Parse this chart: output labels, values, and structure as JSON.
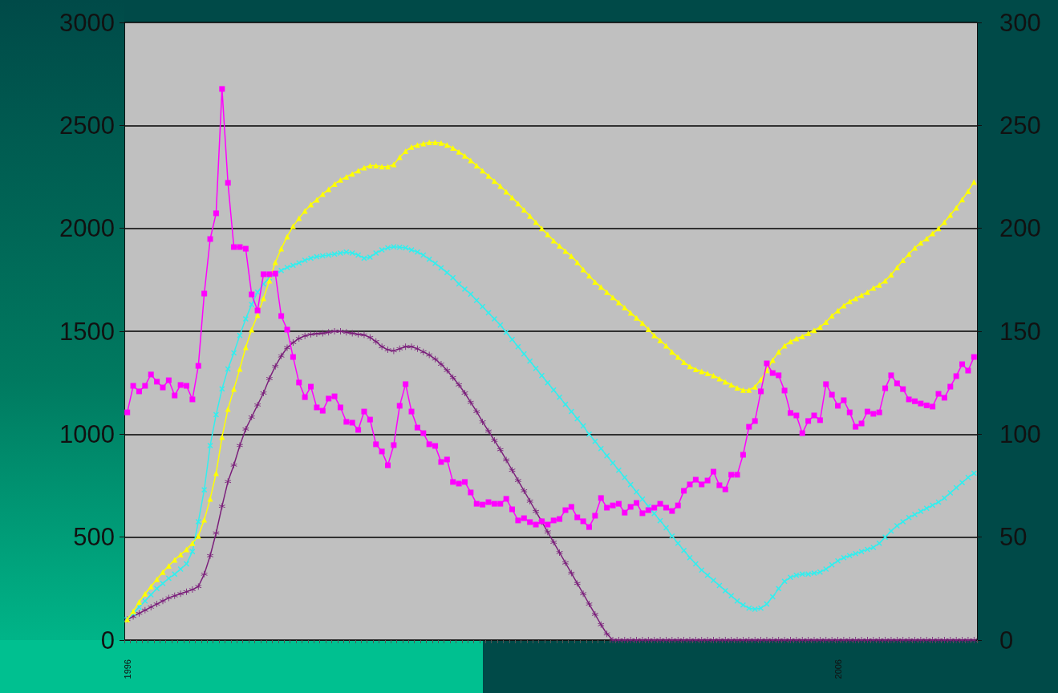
{
  "chart_data": {
    "type": "line",
    "categories": [
      "1996",
      null,
      null,
      null,
      null,
      null,
      null,
      null,
      null,
      null,
      null,
      null,
      null,
      null,
      null,
      null,
      null,
      null,
      null,
      null,
      null,
      null,
      null,
      null,
      null,
      null,
      null,
      null,
      null,
      null,
      null,
      null,
      null,
      null,
      null,
      null,
      null,
      null,
      null,
      null,
      null,
      null,
      null,
      null,
      null,
      null,
      null,
      null,
      null,
      null,
      null,
      null,
      null,
      null,
      null,
      null,
      null,
      null,
      null,
      null,
      null,
      null,
      null,
      null,
      null,
      null,
      null,
      null,
      null,
      null,
      null,
      null,
      null,
      null,
      null,
      null,
      null,
      null,
      null,
      null,
      null,
      null,
      null,
      null,
      null,
      null,
      null,
      null,
      null,
      null,
      null,
      null,
      null,
      null,
      null,
      null,
      null,
      null,
      null,
      null,
      null,
      null,
      null,
      null,
      null,
      null,
      null,
      null,
      null,
      null,
      null,
      null,
      null,
      null,
      null,
      null,
      null,
      null,
      null,
      null,
      "2006",
      null,
      null,
      null,
      null,
      null,
      null,
      null,
      null,
      null,
      null,
      null,
      null,
      null,
      null,
      null,
      null,
      null,
      null,
      null,
      null,
      null,
      null,
      null
    ],
    "series": [
      {
        "color": "#ff00ff",
        "marker": "square",
        "values": [
          1106,
          1235,
          1208,
          1235,
          1290,
          1255,
          1227,
          1262,
          1188,
          1239,
          1235,
          1169,
          1332,
          1683,
          1948,
          2073,
          2677,
          2221,
          1909,
          1909,
          1901,
          1679,
          1601,
          1777,
          1777,
          1780,
          1574,
          1508,
          1375,
          1251,
          1180,
          1231,
          1130,
          1114,
          1173,
          1184,
          1130,
          1060,
          1056,
          1021,
          1110,
          1071,
          951,
          916,
          849,
          947,
          1138,
          1243,
          1110,
          1032,
          1005,
          951,
          943,
          865,
          877,
          768,
          760,
          768,
          717,
          662,
          658,
          670,
          662,
          662,
          686,
          635,
          581,
          592,
          573,
          561,
          577,
          561,
          581,
          588,
          631,
          647,
          596,
          577,
          549,
          604,
          690,
          643,
          654,
          662,
          619,
          647,
          666,
          616,
          631,
          643,
          662,
          643,
          627,
          654,
          725,
          756,
          779,
          756,
          775,
          818,
          752,
          732,
          803,
          803,
          900,
          1036,
          1064,
          1208,
          1344,
          1297,
          1286,
          1212,
          1103,
          1091,
          1005,
          1064,
          1091,
          1068,
          1243,
          1192,
          1138,
          1165,
          1106,
          1036,
          1052,
          1110,
          1099,
          1106,
          1223,
          1286,
          1247,
          1219,
          1169,
          1160,
          1149,
          1140,
          1134,
          1196,
          1177,
          1231,
          1282,
          1340,
          1309,
          1375
        ]
      },
      {
        "color": "#ffff00",
        "marker": "triangle",
        "values": [
          100,
          140,
          185,
          225,
          260,
          295,
          330,
          360,
          390,
          415,
          440,
          470,
          506,
          584,
          686,
          810,
          986,
          1122,
          1219,
          1317,
          1422,
          1508,
          1578,
          1660,
          1745,
          1835,
          1901,
          1960,
          2010,
          2049,
          2084,
          2116,
          2139,
          2166,
          2190,
          2215,
          2235,
          2250,
          2265,
          2280,
          2295,
          2305,
          2305,
          2300,
          2300,
          2310,
          2345,
          2375,
          2395,
          2405,
          2412,
          2418,
          2418,
          2415,
          2405,
          2390,
          2372,
          2352,
          2330,
          2305,
          2280,
          2255,
          2230,
          2205,
          2178,
          2150,
          2120,
          2090,
          2060,
          2030,
          2000,
          1970,
          1940,
          1915,
          1890,
          1865,
          1835,
          1800,
          1770,
          1740,
          1715,
          1690,
          1665,
          1640,
          1615,
          1590,
          1565,
          1540,
          1510,
          1480,
          1455,
          1430,
          1400,
          1375,
          1350,
          1330,
          1315,
          1305,
          1295,
          1285,
          1270,
          1255,
          1240,
          1225,
          1215,
          1215,
          1230,
          1265,
          1310,
          1360,
          1400,
          1430,
          1450,
          1465,
          1475,
          1490,
          1505,
          1520,
          1545,
          1575,
          1600,
          1625,
          1645,
          1660,
          1675,
          1690,
          1710,
          1725,
          1745,
          1775,
          1810,
          1845,
          1875,
          1905,
          1930,
          1950,
          1975,
          2000,
          2030,
          2065,
          2100,
          2140,
          2180,
          2225
        ]
      },
      {
        "color": "#33eeee",
        "marker": "cross",
        "values": [
          100,
          130,
          160,
          190,
          220,
          250,
          275,
          300,
          320,
          345,
          370,
          430,
          575,
          730,
          945,
          1095,
          1220,
          1317,
          1395,
          1480,
          1560,
          1630,
          1690,
          1730,
          1760,
          1780,
          1795,
          1810,
          1820,
          1832,
          1845,
          1855,
          1862,
          1866,
          1870,
          1875,
          1880,
          1885,
          1880,
          1870,
          1855,
          1860,
          1880,
          1895,
          1905,
          1910,
          1908,
          1905,
          1895,
          1885,
          1870,
          1850,
          1830,
          1808,
          1785,
          1760,
          1730,
          1705,
          1680,
          1650,
          1620,
          1590,
          1560,
          1530,
          1495,
          1460,
          1425,
          1390,
          1355,
          1320,
          1285,
          1250,
          1215,
          1180,
          1145,
          1110,
          1075,
          1040,
          1000,
          965,
          930,
          895,
          860,
          825,
          790,
          755,
          720,
          685,
          650,
          615,
          580,
          545,
          505,
          470,
          435,
          400,
          370,
          340,
          315,
          290,
          265,
          240,
          215,
          190,
          170,
          155,
          150,
          155,
          175,
          210,
          250,
          285,
          305,
          315,
          320,
          320,
          325,
          330,
          345,
          365,
          385,
          400,
          410,
          420,
          430,
          440,
          450,
          470,
          500,
          530,
          555,
          575,
          595,
          610,
          625,
          640,
          655,
          670,
          690,
          715,
          740,
          765,
          790,
          810
        ]
      },
      {
        "color": "#7b1f7b",
        "marker": "star",
        "values": [
          100,
          115,
          130,
          145,
          160,
          175,
          190,
          205,
          215,
          225,
          235,
          245,
          260,
          320,
          410,
          520,
          650,
          770,
          850,
          945,
          1025,
          1083,
          1142,
          1200,
          1270,
          1330,
          1380,
          1420,
          1445,
          1465,
          1478,
          1485,
          1488,
          1490,
          1495,
          1500,
          1500,
          1495,
          1490,
          1485,
          1482,
          1470,
          1450,
          1425,
          1410,
          1405,
          1415,
          1425,
          1425,
          1415,
          1400,
          1385,
          1365,
          1340,
          1310,
          1275,
          1240,
          1200,
          1155,
          1110,
          1060,
          1015,
          970,
          925,
          875,
          825,
          775,
          725,
          675,
          625,
          575,
          525,
          475,
          425,
          375,
          325,
          275,
          225,
          175,
          125,
          75,
          30,
          0,
          0,
          0,
          0,
          0,
          0,
          0,
          0,
          0,
          0,
          0,
          0,
          0,
          0,
          0,
          0,
          0,
          0,
          0,
          0,
          0,
          0,
          0,
          0,
          0,
          0,
          0,
          0,
          0,
          0,
          0,
          0,
          0,
          0,
          0,
          0,
          0,
          0,
          0,
          0,
          0,
          0,
          0,
          0,
          0,
          0,
          0,
          0,
          0,
          0,
          0,
          0,
          0,
          0,
          0,
          0,
          0,
          0,
          0,
          0,
          0,
          0
        ]
      }
    ],
    "ylim": [
      0,
      3000
    ],
    "yticks": [
      0,
      500,
      1000,
      1500,
      2000,
      2500,
      3000
    ],
    "y2lim": [
      0,
      300
    ],
    "y2ticks": [
      0,
      50,
      100,
      150,
      200,
      250,
      300
    ],
    "grid": "y"
  }
}
